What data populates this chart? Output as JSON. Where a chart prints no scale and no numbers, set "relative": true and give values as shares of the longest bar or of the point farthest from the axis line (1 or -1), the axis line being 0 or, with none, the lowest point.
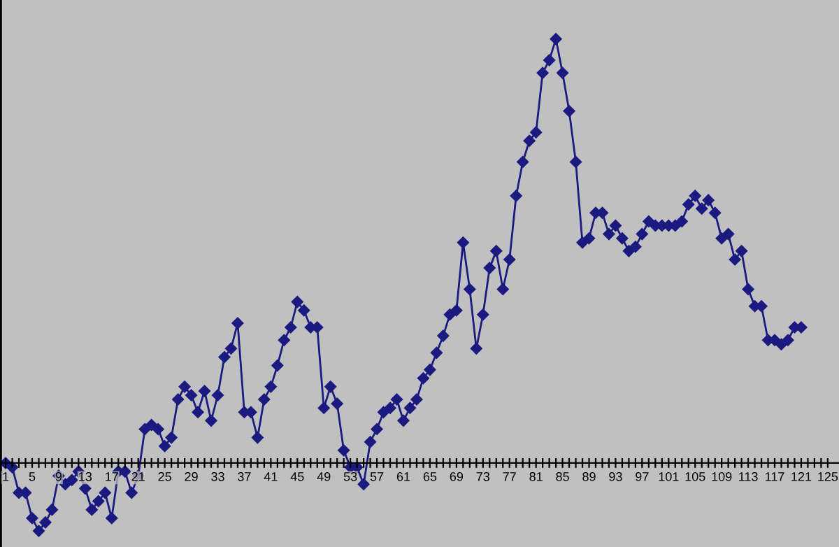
{
  "chart_data": {
    "type": "line",
    "relative": true,
    "marker": "diamond",
    "line_style": "solid",
    "grid": false,
    "categories": [
      "1",
      null,
      null,
      null,
      "5",
      null,
      null,
      null,
      "9",
      null,
      null,
      null,
      "13",
      null,
      null,
      null,
      "17",
      null,
      null,
      null,
      "21",
      null,
      null,
      null,
      "25",
      null,
      null,
      null,
      "29",
      null,
      null,
      null,
      "33",
      null,
      null,
      null,
      "37",
      null,
      null,
      null,
      "41",
      null,
      null,
      null,
      "45",
      null,
      null,
      null,
      "49",
      null,
      null,
      null,
      "53",
      null,
      null,
      null,
      "57",
      null,
      null,
      null,
      "61",
      null,
      null,
      null,
      "65",
      null,
      null,
      null,
      "69",
      null,
      null,
      null,
      "73",
      null,
      null,
      null,
      "77",
      null,
      null,
      null,
      "81",
      null,
      null,
      null,
      "85",
      null,
      null,
      null,
      "89",
      null,
      null,
      null,
      "93",
      null,
      null,
      null,
      "97",
      null,
      null,
      null,
      "101",
      null,
      null,
      null,
      "105",
      null,
      null,
      null,
      "109",
      null,
      null,
      null,
      "113",
      null,
      null,
      null,
      "117",
      null,
      null,
      null,
      "121",
      null,
      null,
      null,
      "125"
    ],
    "series": [
      {
        "color": "#1a1a80",
        "values": [
          0.0,
          -0.01,
          -0.07,
          -0.07,
          -0.13,
          -0.16,
          -0.14,
          -0.11,
          -0.03,
          -0.05,
          -0.04,
          -0.02,
          -0.06,
          -0.11,
          -0.09,
          -0.07,
          -0.13,
          -0.02,
          -0.02,
          -0.07,
          -0.03,
          0.08,
          0.09,
          0.08,
          0.04,
          0.06,
          0.15,
          0.18,
          0.16,
          0.12,
          0.17,
          0.1,
          0.16,
          0.25,
          0.27,
          0.33,
          0.12,
          0.12,
          0.06,
          0.15,
          0.18,
          0.23,
          0.29,
          0.32,
          0.38,
          0.36,
          0.32,
          0.32,
          0.13,
          0.18,
          0.14,
          0.03,
          -0.01,
          -0.01,
          -0.05,
          0.05,
          0.08,
          0.12,
          0.13,
          0.15,
          0.1,
          0.13,
          0.15,
          0.2,
          0.22,
          0.26,
          0.3,
          0.35,
          0.36,
          0.52,
          0.41,
          0.27,
          0.35,
          0.46,
          0.5,
          0.41,
          0.48,
          0.63,
          0.71,
          0.76,
          0.78,
          0.92,
          0.95,
          1.0,
          0.92,
          0.83,
          0.71,
          0.52,
          0.53,
          0.59,
          0.59,
          0.54,
          0.56,
          0.53,
          0.5,
          0.51,
          0.54,
          0.57,
          0.56,
          0.56,
          0.56,
          0.56,
          0.57,
          0.61,
          0.63,
          0.6,
          0.62,
          0.59,
          0.53,
          0.54,
          0.48,
          0.5,
          0.41,
          0.37,
          0.37,
          0.29,
          0.29,
          0.28,
          0.29,
          0.32,
          0.32,
          null,
          null,
          null,
          null
        ]
      }
    ]
  }
}
